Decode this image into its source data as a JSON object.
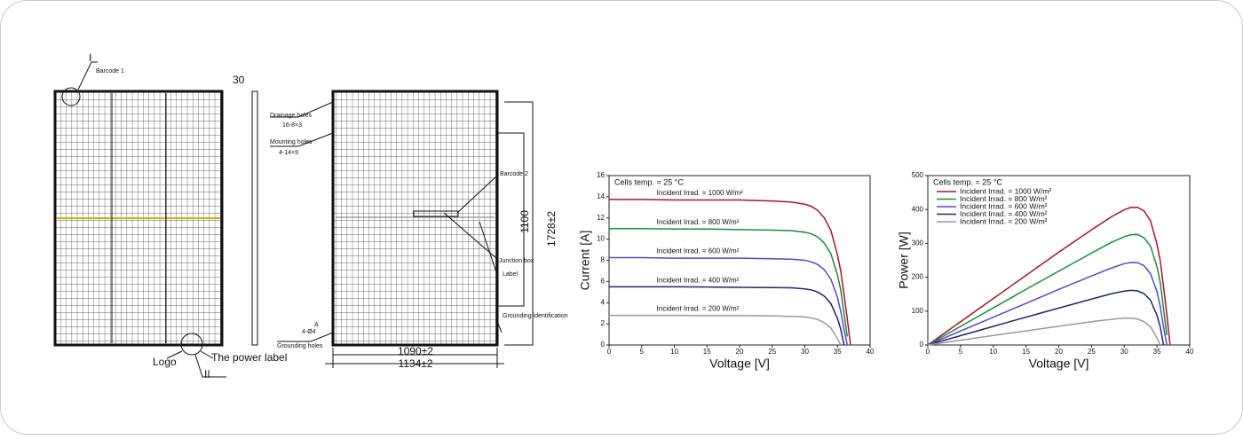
{
  "drawing": {
    "labels": {
      "detail_1": "I",
      "barcode_1": "Barcode 1",
      "frame_depth": "30",
      "drainage_holes": "Drainage holes",
      "drainage_spec": "16-8×3",
      "mounting_holes": "Mounting holes",
      "mounting_spec": "4-14×9",
      "barcode_2": "Barcode 2",
      "mount_pitch": "1100",
      "length": "1728±2",
      "junction_box": "Junction box",
      "label": "Label",
      "grounding_identification": "Grounding identification",
      "grounding_spec": "4-Ø4",
      "section": "A",
      "grounding_holes": "Grounding holes",
      "inner_width": "1090±2",
      "width": "1134±2",
      "logo": "Logo",
      "power_label": "The power label",
      "detail_2": "II"
    }
  },
  "chart_data": [
    {
      "type": "line",
      "annotation": "Cells temp. = 25 °C",
      "x_label": "Voltage [V]",
      "y_label": "Current [A]",
      "legend": "inline",
      "x": [
        0,
        5,
        10,
        15,
        20,
        25,
        28,
        30,
        31,
        32,
        33,
        34,
        35,
        35.5,
        36,
        36.5,
        37
      ],
      "xlim": [
        0,
        40
      ],
      "xticks": [
        0,
        5,
        10,
        15,
        20,
        25,
        30,
        35,
        40
      ],
      "ylim": [
        0,
        16
      ],
      "yticks": [
        0,
        2,
        4,
        6,
        8,
        10,
        12,
        14,
        16
      ],
      "series": [
        {
          "name": "Incident Irrad. = 1000 W/m²",
          "color": "#a3162c",
          "values": [
            13.75,
            13.75,
            13.7,
            13.7,
            13.7,
            13.6,
            13.5,
            13.3,
            13.1,
            12.7,
            12.0,
            10.8,
            8.5,
            7.0,
            4.8,
            2.5,
            0
          ]
        },
        {
          "name": "Incident Irrad. = 800 W/m²",
          "color": "#1b8a3c",
          "values": [
            11,
            11,
            10.95,
            10.95,
            10.9,
            10.85,
            10.8,
            10.65,
            10.5,
            10.2,
            9.6,
            8.6,
            6.6,
            5.2,
            3.0,
            0.8,
            null
          ]
        },
        {
          "name": "Incident Irrad. = 600 W/m²",
          "color": "#5548c8",
          "values": [
            8.25,
            8.25,
            8.2,
            8.2,
            8.2,
            8.15,
            8.1,
            8.0,
            7.85,
            7.6,
            7.1,
            6.2,
            4.5,
            3.2,
            1.5,
            0,
            null
          ]
        },
        {
          "name": "Incident Irrad. = 400 W/m²",
          "color": "#1b2a66",
          "values": [
            5.5,
            5.5,
            5.5,
            5.48,
            5.45,
            5.42,
            5.4,
            5.3,
            5.2,
            5.0,
            4.6,
            3.9,
            2.5,
            1.5,
            0,
            null,
            null
          ]
        },
        {
          "name": "Incident Irrad. = 200 W/m²",
          "color": "#999999",
          "values": [
            2.8,
            2.8,
            2.8,
            2.78,
            2.77,
            2.75,
            2.7,
            2.65,
            2.55,
            2.4,
            2.1,
            1.6,
            0.6,
            0,
            null,
            null,
            null
          ]
        }
      ]
    },
    {
      "type": "line",
      "annotation": "Cells temp. = 25 °C",
      "x_label": "Voltage [V]",
      "y_label": "Power [W]",
      "legend": "upper left",
      "x": [
        0,
        5,
        10,
        15,
        20,
        25,
        28,
        30,
        31,
        32,
        33,
        34,
        35,
        35.5,
        36,
        36.5,
        37
      ],
      "xlim": [
        0,
        40
      ],
      "xticks": [
        0,
        5,
        10,
        15,
        20,
        25,
        30,
        35,
        40
      ],
      "ylim": [
        0,
        500
      ],
      "yticks": [
        0,
        100,
        200,
        300,
        400,
        500
      ],
      "series": [
        {
          "name": "Incident Irrad. = 1000 W/m²",
          "color": "#a3162c",
          "values": [
            0,
            68.8,
            137,
            205.5,
            274,
            340,
            378,
            399,
            406.1,
            406.4,
            396,
            367.2,
            297.5,
            248.5,
            172.8,
            91.3,
            0
          ]
        },
        {
          "name": "Incident Irrad. = 800 W/m²",
          "color": "#1b8a3c",
          "values": [
            0,
            55,
            109.5,
            164.3,
            218,
            271.3,
            302.4,
            319.5,
            325.5,
            326.4,
            316.8,
            292.4,
            231,
            184.6,
            108,
            29.2,
            null
          ]
        },
        {
          "name": "Incident Irrad. = 600 W/m²",
          "color": "#5548c8",
          "values": [
            0,
            41.3,
            82,
            123,
            164,
            203.8,
            226.8,
            240,
            243.4,
            243.2,
            234.3,
            210.8,
            157.5,
            113.6,
            54,
            0,
            null
          ]
        },
        {
          "name": "Incident Irrad. = 400 W/m²",
          "color": "#1b2a66",
          "values": [
            0,
            27.5,
            55,
            82.2,
            109,
            135.5,
            151.2,
            159,
            161.2,
            160,
            151.8,
            132.6,
            87.5,
            53.3,
            0,
            null,
            null
          ]
        },
        {
          "name": "Incident Irrad. = 200 W/m²",
          "color": "#999999",
          "values": [
            0,
            14,
            28,
            41.7,
            55.4,
            68.8,
            75.6,
            79.5,
            79.1,
            76.8,
            69.3,
            54.4,
            21,
            0,
            null,
            null,
            null
          ]
        }
      ]
    }
  ]
}
